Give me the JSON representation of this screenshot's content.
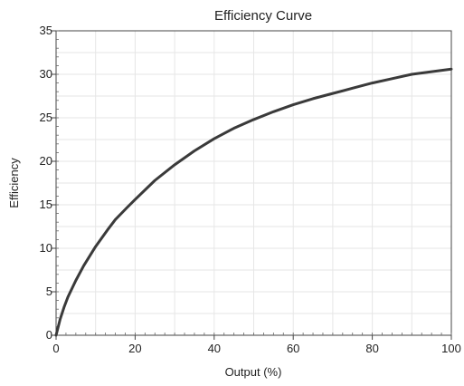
{
  "chart_data": {
    "type": "line",
    "title": "Efficiency Curve",
    "xlabel": "Output (%)",
    "ylabel": "Efficiency",
    "xlim": [
      0,
      100
    ],
    "ylim": [
      0,
      35
    ],
    "xticks": [
      0,
      20,
      40,
      60,
      80,
      100
    ],
    "yticks": [
      0,
      5,
      10,
      15,
      20,
      25,
      30,
      35
    ],
    "grid": true,
    "legend": "none",
    "series": [
      {
        "color": "#3a3a3a",
        "x": [
          0,
          1,
          2,
          3,
          5,
          7,
          10,
          13,
          15,
          18,
          20,
          25,
          30,
          35,
          40,
          45,
          50,
          55,
          60,
          65,
          70,
          75,
          80,
          85,
          90,
          95,
          100
        ],
        "y": [
          0,
          1.8,
          3.2,
          4.4,
          6.3,
          8.0,
          10.2,
          12.1,
          13.3,
          14.7,
          15.6,
          17.8,
          19.6,
          21.2,
          22.6,
          23.8,
          24.8,
          25.7,
          26.5,
          27.2,
          27.8,
          28.4,
          29.0,
          29.5,
          30.0,
          30.3,
          30.6
        ]
      }
    ]
  }
}
